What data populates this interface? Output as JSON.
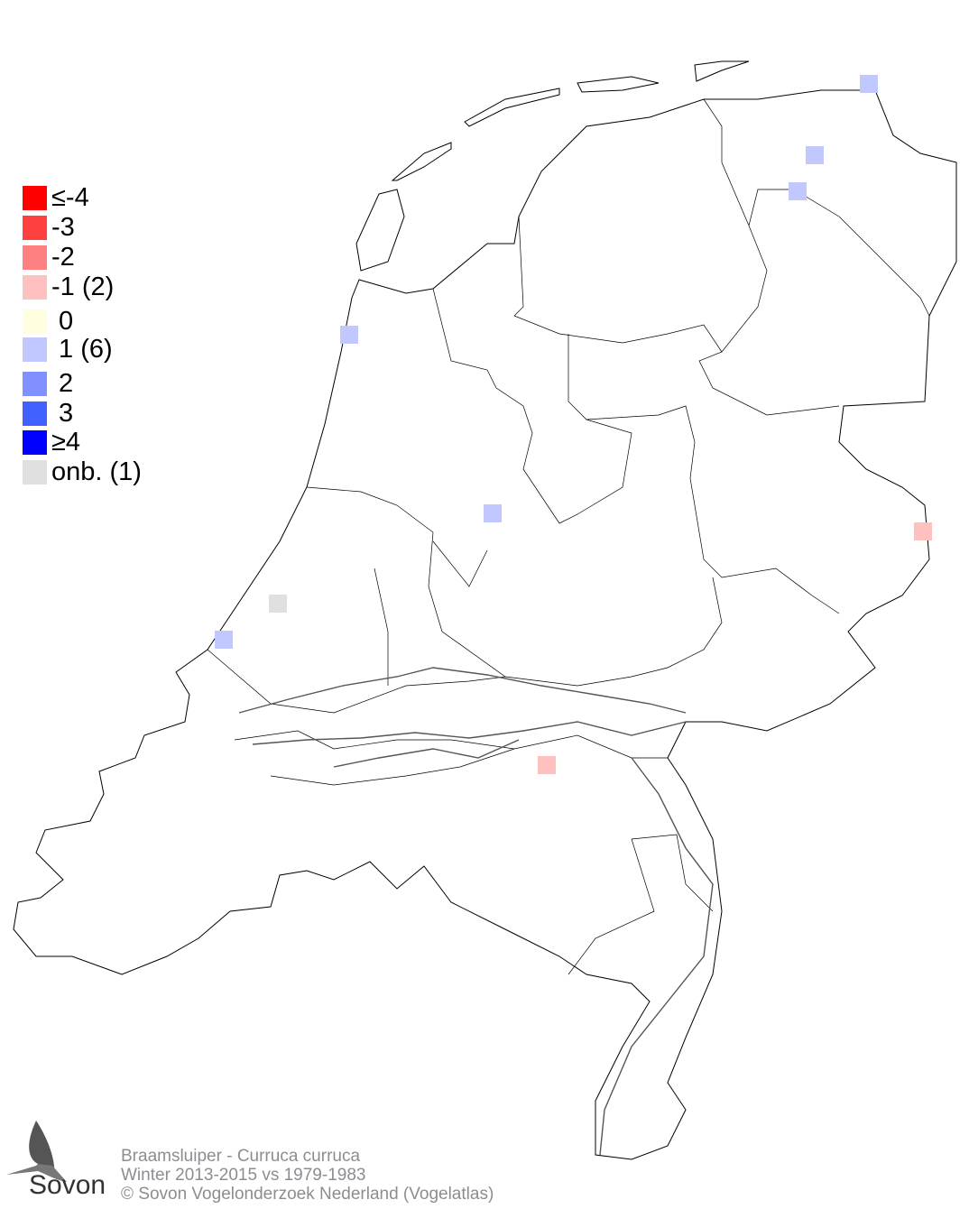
{
  "legend": {
    "items": [
      {
        "label": "≤-4",
        "color": "#ff0000"
      },
      {
        "label": "-3",
        "color": "#ff4040"
      },
      {
        "label": "-2",
        "color": "#ff8080"
      },
      {
        "label": "-1 (2)",
        "color": "#ffc0c0"
      },
      {
        "label": " 0",
        "color": "#ffffe0"
      },
      {
        "label": " 1 (6)",
        "color": "#c0c8ff"
      },
      {
        "label": " 2",
        "color": "#8090ff"
      },
      {
        "label": " 3",
        "color": "#4060ff"
      },
      {
        "label": "≥4",
        "color": "#0000ff"
      },
      {
        "label": "onb. (1)",
        "color": "#e0e0e0"
      }
    ]
  },
  "cells": [
    {
      "value": 1
    },
    {
      "value": 1
    },
    {
      "value": 1
    },
    {
      "value": 1
    },
    {
      "value": 1
    },
    {
      "value": -1
    },
    {
      "value": "onb."
    },
    {
      "value": 1
    },
    {
      "value": -1
    }
  ],
  "footer": {
    "line1": "Braamsluiper - Curruca curruca",
    "line2": "Winter 2013-2015 vs 1979-1983",
    "line3": "© Sovon Vogelonderzoek Nederland (Vogelatlas)"
  },
  "logo": {
    "text": "Sovon"
  }
}
